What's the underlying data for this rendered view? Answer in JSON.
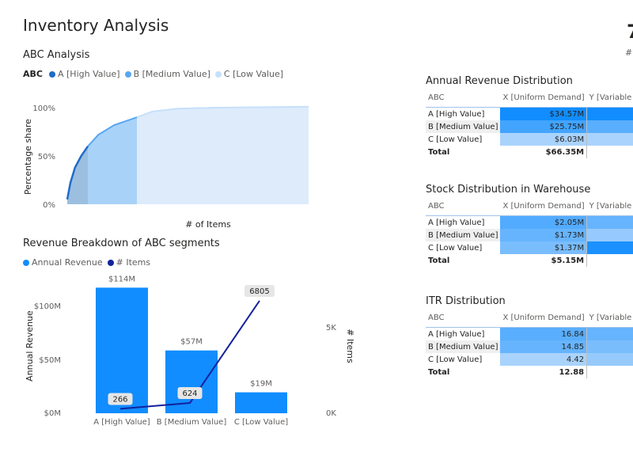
{
  "page": {
    "title": "Inventory Analysis",
    "kpi_value": "7",
    "kpi_label": "#"
  },
  "abc_section": {
    "title": "ABC Analysis",
    "legend_title": "ABC",
    "legend": [
      "A [High Value]",
      "B [Medium Value]",
      "C [Low Value]"
    ],
    "colors": [
      "#1f6cc7",
      "#5aa6f2",
      "#c6e0fb"
    ]
  },
  "revenue_section": {
    "title": "Revenue Breakdown of ABC segments",
    "legend": [
      "Annual Revenue",
      "# Items"
    ],
    "colors": {
      "bar": "#118dff",
      "line": "#12239e"
    }
  },
  "tables": [
    {
      "title": "Annual Revenue Distribution",
      "headers": [
        "ABC",
        "X [Uniform Demand]",
        "Y [Variable"
      ],
      "rows": [
        {
          "label": "A [High Value]",
          "x": "$34.57M",
          "x_share": 1.0,
          "y_share": 1.0
        },
        {
          "label": "B [Medium Value]",
          "x": "$25.75M",
          "x_share": 0.74,
          "y_share": 0.62
        },
        {
          "label": "C [Low Value]",
          "x": "$6.03M",
          "x_share": 0.2,
          "y_share": 0.2
        }
      ],
      "total_label": "Total",
      "total": "$66.35M"
    },
    {
      "title": "Stock Distribution in Warehouse",
      "headers": [
        "ABC",
        "X [Uniform Demand]",
        "Y [Variable"
      ],
      "rows": [
        {
          "label": "A [High Value]",
          "x": "$2.05M",
          "x_share": 0.66,
          "y_share": 0.55
        },
        {
          "label": "B [Medium Value]",
          "x": "$1.73M",
          "x_share": 0.55,
          "y_share": 0.3
        },
        {
          "label": "C [Low Value]",
          "x": "$1.37M",
          "x_share": 0.45,
          "y_share": 0.95
        }
      ],
      "total_label": "Total",
      "total": "$5.15M"
    },
    {
      "title": "ITR Distribution",
      "headers": [
        "ABC",
        "X [Uniform Demand]",
        "Y [Variable"
      ],
      "rows": [
        {
          "label": "A [High Value]",
          "x": "16.84",
          "x_share": 0.62,
          "y_share": 0.55
        },
        {
          "label": "B [Medium Value]",
          "x": "14.85",
          "x_share": 0.55,
          "y_share": 0.45
        },
        {
          "label": "C [Low Value]",
          "x": "4.42",
          "x_share": 0.2,
          "y_share": 0.3
        }
      ],
      "total_label": "Total",
      "total": "12.88"
    }
  ],
  "chart_data": [
    {
      "type": "area",
      "title": "ABC Analysis",
      "xlabel": "# of Items",
      "ylabel": "Percentage share",
      "yticks": [
        "0%",
        "50%",
        "100%"
      ],
      "ylim": [
        0,
        100
      ],
      "x_total": 7695,
      "segments": [
        {
          "name": "A [High Value]",
          "x_end": 266
        },
        {
          "name": "B [Medium Value]",
          "x_end": 890
        },
        {
          "name": "C [Low Value]",
          "x_end": 7695
        }
      ],
      "curve": [
        [
          0,
          5
        ],
        [
          40,
          22
        ],
        [
          100,
          38
        ],
        [
          180,
          50
        ],
        [
          266,
          60
        ],
        [
          400,
          72
        ],
        [
          600,
          82
        ],
        [
          890,
          90
        ],
        [
          1500,
          96
        ],
        [
          2500,
          99
        ],
        [
          4000,
          100
        ],
        [
          7695,
          101
        ]
      ],
      "grid": false
    },
    {
      "type": "bar",
      "title": "Revenue Breakdown of ABC segments",
      "categories": [
        "A [High Value]",
        "B [Medium Value]",
        "C [Low Value]"
      ],
      "series": [
        {
          "name": "Annual Revenue",
          "values": [
            114,
            57,
            19
          ],
          "labels": [
            "$114M",
            "$57M",
            "$19M"
          ],
          "axis": "left"
        },
        {
          "name": "# Items",
          "type": "line",
          "values": [
            266,
            624,
            6805
          ],
          "labels": [
            "266",
            "624",
            "6805"
          ],
          "axis": "right"
        }
      ],
      "ylabel": "Annual Revenue",
      "ylim": [
        0,
        120
      ],
      "yticks": [
        "$0M",
        "$50M",
        "$100M"
      ],
      "y2label": "# Items",
      "y2lim": [
        0,
        8000
      ],
      "y2ticks": [
        "0K",
        "5K"
      ]
    }
  ]
}
